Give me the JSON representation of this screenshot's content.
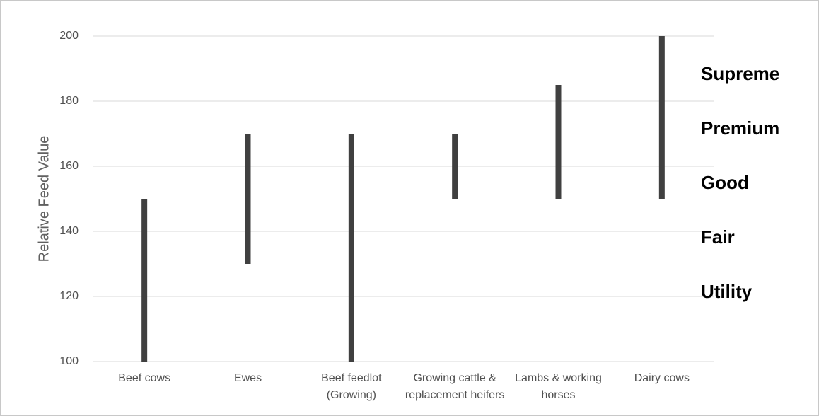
{
  "chart_data": {
    "type": "range",
    "y_axis_label": "Relative Feed Value",
    "categories": [
      "Beef cows",
      "Ewes",
      "Beef feedlot (Growing)",
      "Growing cattle & replacement heifers",
      "Lambs & working horses",
      "Dairy cows"
    ],
    "low": [
      100,
      130,
      100,
      150,
      150,
      150
    ],
    "high": [
      150,
      170,
      170,
      170,
      185,
      200
    ],
    "color": "#404040",
    "ylim": [
      100,
      200
    ],
    "yticks": [
      100,
      120,
      140,
      160,
      180,
      200
    ],
    "grid": true,
    "annotations": [
      "Supreme",
      "Premium",
      "Good",
      "Fair",
      "Utility"
    ]
  }
}
